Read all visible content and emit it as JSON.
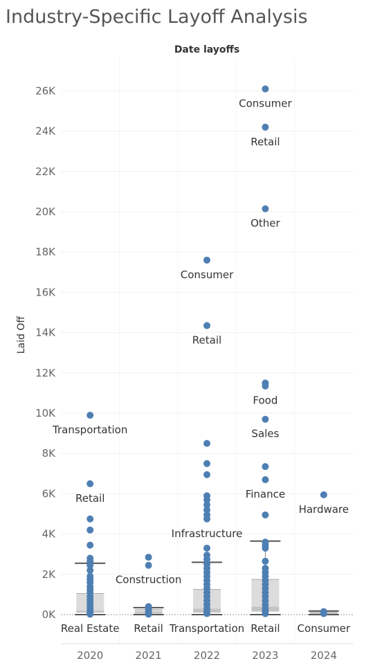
{
  "chart_data": {
    "type": "scatter",
    "title": "Industry-Specific Layoff Analysis",
    "subtitle": "Date layoffs",
    "ylabel": "Laid Off",
    "ylim": [
      0,
      27000
    ],
    "y_ticks": [
      0,
      2000,
      4000,
      6000,
      8000,
      10000,
      12000,
      14000,
      16000,
      18000,
      20000,
      22000,
      24000,
      26000
    ],
    "y_tick_labels": [
      "0K",
      "2K",
      "4K",
      "6K",
      "8K",
      "10K",
      "12K",
      "14K",
      "16K",
      "18K",
      "20K",
      "22K",
      "24K",
      "26K"
    ],
    "categories": [
      "2020",
      "2021",
      "2022",
      "2023",
      "2024"
    ],
    "colors": {
      "point": "#4e7fb3",
      "box_outer": "#dcdcdc",
      "box_inner": "#c4c4c4",
      "whisker": "#555555"
    },
    "points": {
      "2020": [
        9900,
        6500,
        4750,
        4200,
        3450,
        2800,
        2650,
        2450,
        2200,
        1900,
        1750,
        1600,
        1400,
        1250,
        1100,
        900,
        750,
        600,
        450,
        300,
        200,
        100,
        50,
        20
      ],
      "2021": [
        2850,
        2450,
        400,
        300,
        200,
        100,
        50,
        20
      ],
      "2022": [
        17600,
        14350,
        8500,
        7500,
        6950,
        5900,
        5700,
        5450,
        5200,
        4950,
        4750,
        3300,
        2950,
        2750,
        2500,
        2300,
        2100,
        1900,
        1700,
        1500,
        1300,
        1100,
        900,
        700,
        500,
        300,
        150,
        50
      ],
      "2023": [
        26100,
        24200,
        20150,
        11500,
        11350,
        9700,
        7350,
        6700,
        4950,
        3600,
        3450,
        3300,
        2650,
        2300,
        2100,
        1900,
        1700,
        1500,
        1300,
        1100,
        900,
        700,
        500,
        300,
        150,
        50
      ],
      "2024": [
        5950,
        150,
        50
      ]
    },
    "boxes": [
      {
        "category": "2020",
        "whisker_low": 0,
        "q1": 100,
        "median": 200,
        "q3": 1050,
        "whisker_high": 2550
      },
      {
        "category": "2021",
        "whisker_low": 0,
        "q1": 50,
        "median": 150,
        "q3": 250,
        "whisker_high": 350
      },
      {
        "category": "2022",
        "whisker_low": 0,
        "q1": 100,
        "median": 300,
        "q3": 1250,
        "whisker_high": 2600
      },
      {
        "category": "2023",
        "whisker_low": 0,
        "q1": 150,
        "median": 400,
        "q3": 1750,
        "whisker_high": 3650
      },
      {
        "category": "2024",
        "whisker_low": 0,
        "q1": 30,
        "median": 80,
        "q3": 120,
        "whisker_high": 180
      }
    ],
    "annotations": [
      {
        "category": "2020",
        "value": 9900,
        "text": "Transportation"
      },
      {
        "category": "2020",
        "value": 6500,
        "text": "Retail"
      },
      {
        "category": "2020",
        "value": 0,
        "text": "Real Estate"
      },
      {
        "category": "2021",
        "value": 2450,
        "text": "Construction"
      },
      {
        "category": "2021",
        "value": 0,
        "text": "Retail"
      },
      {
        "category": "2022",
        "value": 17600,
        "text": "Consumer"
      },
      {
        "category": "2022",
        "value": 14350,
        "text": "Retail"
      },
      {
        "category": "2022",
        "value": 4750,
        "text": "Infrastructure"
      },
      {
        "category": "2022",
        "value": 0,
        "text": "Transportation"
      },
      {
        "category": "2023",
        "value": 26100,
        "text": "Consumer"
      },
      {
        "category": "2023",
        "value": 24200,
        "text": "Retail"
      },
      {
        "category": "2023",
        "value": 20150,
        "text": "Other"
      },
      {
        "category": "2023",
        "value": 11350,
        "text": "Food"
      },
      {
        "category": "2023",
        "value": 9700,
        "text": "Sales"
      },
      {
        "category": "2023",
        "value": 6700,
        "text": "Finance"
      },
      {
        "category": "2023",
        "value": 0,
        "text": "Retail"
      },
      {
        "category": "2024",
        "value": 5950,
        "text": "Hardware"
      },
      {
        "category": "2024",
        "value": 0,
        "text": "Consumer"
      }
    ]
  }
}
